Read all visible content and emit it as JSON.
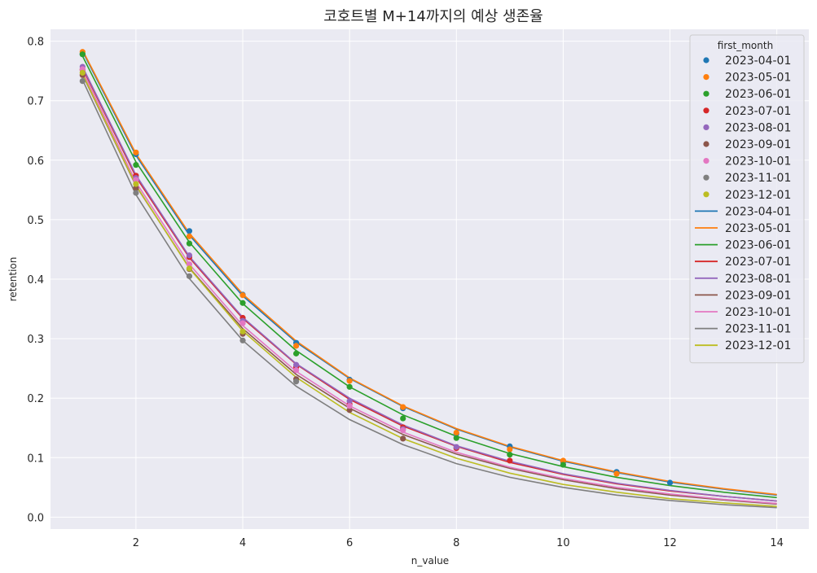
{
  "chart_data": {
    "type": "line",
    "title": "코호트별 M+14까지의 예상 생존율",
    "xlabel": "n_value",
    "ylabel": "retention",
    "xlim": [
      0.4,
      14.6
    ],
    "ylim": [
      -0.02,
      0.82
    ],
    "xticks": [
      2,
      4,
      6,
      8,
      10,
      12,
      14
    ],
    "yticks": [
      0.0,
      0.1,
      0.2,
      0.3,
      0.4,
      0.5,
      0.6,
      0.7,
      0.8
    ],
    "grid": true,
    "legend": {
      "title": "first_month",
      "placement": "top-right"
    },
    "x_fit": [
      1,
      2,
      3,
      4,
      5,
      6,
      7,
      8,
      9,
      10,
      11,
      12,
      13,
      14
    ],
    "series": [
      {
        "name": "2023-04-01",
        "color": "#1f77b4",
        "observed_x": [
          1,
          2,
          3,
          4,
          5,
          6,
          7,
          8,
          9,
          10,
          11,
          12
        ],
        "observed": [
          0.778,
          0.61,
          0.481,
          0.374,
          0.293,
          0.231,
          0.183,
          0.14,
          0.119,
          0.093,
          0.076,
          0.058
        ],
        "fit": [
          0.783,
          0.608,
          0.474,
          0.372,
          0.294,
          0.233,
          0.186,
          0.148,
          0.118,
          0.094,
          0.075,
          0.059,
          0.047,
          0.037
        ]
      },
      {
        "name": "2023-05-01",
        "color": "#ff7f0e",
        "observed_x": [
          1,
          2,
          3,
          4,
          5,
          6,
          7,
          8,
          9,
          10,
          11
        ],
        "observed": [
          0.782,
          0.613,
          0.472,
          0.373,
          0.288,
          0.229,
          0.185,
          0.142,
          0.114,
          0.095,
          0.073
        ],
        "fit": [
          0.785,
          0.611,
          0.477,
          0.375,
          0.296,
          0.234,
          0.187,
          0.149,
          0.119,
          0.095,
          0.076,
          0.06,
          0.048,
          0.038
        ]
      },
      {
        "name": "2023-06-01",
        "color": "#2ca02c",
        "observed_x": [
          1,
          2,
          3,
          4,
          5,
          6,
          7,
          8,
          9,
          10
        ],
        "observed": [
          0.778,
          0.592,
          0.46,
          0.36,
          0.275,
          0.219,
          0.166,
          0.133,
          0.105,
          0.088
        ],
        "fit": [
          0.775,
          0.597,
          0.462,
          0.359,
          0.28,
          0.219,
          0.172,
          0.136,
          0.107,
          0.085,
          0.067,
          0.053,
          0.042,
          0.033
        ]
      },
      {
        "name": "2023-07-01",
        "color": "#d62728",
        "observed_x": [
          1,
          2,
          3,
          4,
          5,
          6,
          7,
          8,
          9
        ],
        "observed": [
          0.752,
          0.574,
          0.437,
          0.335,
          0.252,
          0.19,
          0.151,
          0.116,
          0.095
        ],
        "fit": [
          0.755,
          0.572,
          0.436,
          0.334,
          0.257,
          0.198,
          0.153,
          0.119,
          0.092,
          0.072,
          0.056,
          0.044,
          0.035,
          0.027
        ]
      },
      {
        "name": "2023-08-01",
        "color": "#9467bd",
        "observed_x": [
          1,
          2,
          3,
          4,
          5,
          6,
          7,
          8
        ],
        "observed": [
          0.757,
          0.57,
          0.44,
          0.33,
          0.256,
          0.195,
          0.148,
          0.118
        ],
        "fit": [
          0.757,
          0.575,
          0.438,
          0.336,
          0.258,
          0.2,
          0.155,
          0.12,
          0.094,
          0.073,
          0.057,
          0.045,
          0.035,
          0.027
        ]
      },
      {
        "name": "2023-09-01",
        "color": "#8c564b",
        "observed_x": [
          1,
          2,
          3,
          4,
          5,
          6,
          7
        ],
        "observed": [
          0.743,
          0.553,
          0.417,
          0.308,
          0.232,
          0.18,
          0.132
        ],
        "fit": [
          0.744,
          0.557,
          0.419,
          0.317,
          0.24,
          0.183,
          0.139,
          0.106,
          0.082,
          0.063,
          0.048,
          0.037,
          0.029,
          0.022
        ]
      },
      {
        "name": "2023-10-01",
        "color": "#e377c2",
        "observed_x": [
          1,
          2,
          3,
          4,
          5,
          6,
          7
        ],
        "observed": [
          0.753,
          0.567,
          0.425,
          0.326,
          0.247,
          0.187,
          0.146
        ],
        "fit": [
          0.75,
          0.563,
          0.425,
          0.322,
          0.245,
          0.187,
          0.143,
          0.109,
          0.084,
          0.065,
          0.05,
          0.039,
          0.03,
          0.023
        ]
      },
      {
        "name": "2023-11-01",
        "color": "#7f7f7f",
        "observed_x": [
          1,
          2,
          3,
          4,
          5
        ],
        "observed": [
          0.733,
          0.545,
          0.405,
          0.297,
          0.228
        ],
        "fit": [
          0.735,
          0.542,
          0.401,
          0.297,
          0.22,
          0.164,
          0.122,
          0.09,
          0.067,
          0.05,
          0.037,
          0.028,
          0.021,
          0.016
        ]
      },
      {
        "name": "2023-12-01",
        "color": "#bcbd22",
        "observed_x": [
          1,
          2,
          3,
          4
        ],
        "observed": [
          0.747,
          0.56,
          0.418,
          0.312
        ],
        "fit": [
          0.745,
          0.558,
          0.418,
          0.313,
          0.235,
          0.176,
          0.132,
          0.099,
          0.074,
          0.055,
          0.042,
          0.031,
          0.024,
          0.018
        ]
      }
    ]
  }
}
